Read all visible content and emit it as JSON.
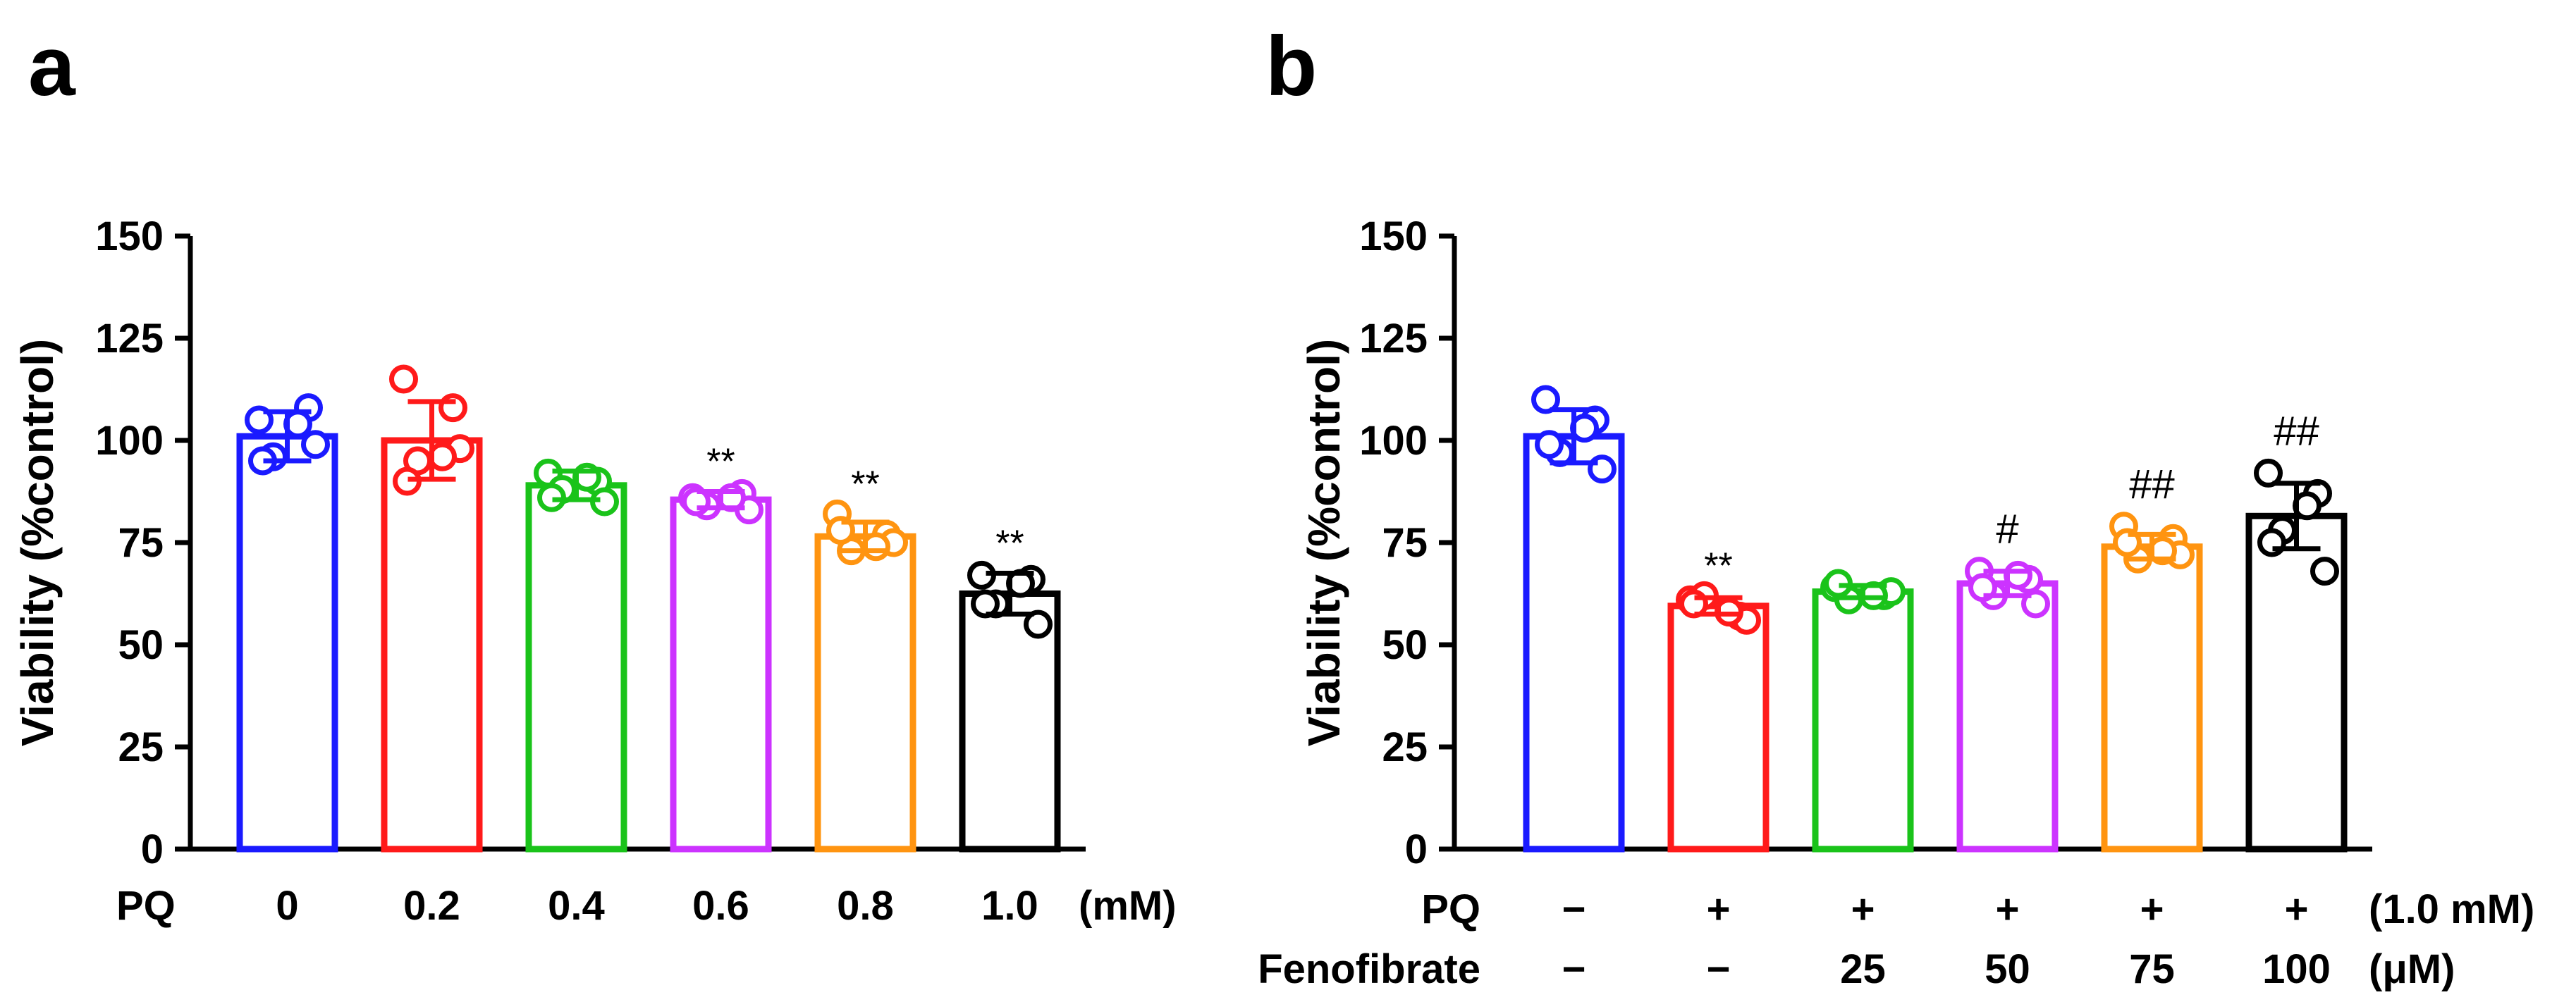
{
  "colors": {
    "blue": "#1a1aff",
    "red": "#ff1a1a",
    "green": "#1ac31a",
    "magenta": "#cc33ff",
    "orange": "#ff9410",
    "black": "#000000"
  },
  "chart_data": [
    {
      "panel": "a",
      "type": "bar",
      "ylabel": "Viability (%control)",
      "ylim": [
        0,
        150
      ],
      "yticks": [
        "0",
        "25",
        "50",
        "75",
        "100",
        "125",
        "150"
      ],
      "row_label": "PQ",
      "unit_label": "(mM)",
      "categories": [
        "0",
        "0.2",
        "0.4",
        "0.6",
        "0.8",
        "1.0"
      ],
      "values": [
        101,
        100,
        89,
        85.5,
        76.5,
        62.5
      ],
      "errors": [
        6,
        9.5,
        3.5,
        2,
        3.5,
        5
      ],
      "bar_colors": [
        "blue",
        "red",
        "green",
        "magenta",
        "orange",
        "black"
      ],
      "annotations": [
        "",
        "",
        "",
        "**",
        "**",
        "**"
      ],
      "points": [
        [
          105,
          108,
          96,
          99,
          95,
          104
        ],
        [
          115,
          108,
          95,
          98,
          90,
          96
        ],
        [
          92,
          90,
          88,
          85,
          86,
          91
        ],
        [
          86,
          87,
          84,
          83,
          85,
          86
        ],
        [
          82,
          77,
          73,
          75,
          78,
          74
        ],
        [
          67,
          66,
          60,
          55,
          60,
          65
        ]
      ]
    },
    {
      "panel": "b",
      "type": "bar",
      "ylabel": "Viability (%control)",
      "ylim": [
        0,
        150
      ],
      "yticks": [
        "0",
        "25",
        "50",
        "75",
        "100",
        "125",
        "150"
      ],
      "row1_label": "PQ",
      "row1_values": [
        "−",
        "+",
        "+",
        "+",
        "+",
        "+"
      ],
      "row1_unit": "(1.0 mM)",
      "row2_label": "Fenofibrate",
      "row2_values": [
        "−",
        "−",
        "25",
        "50",
        "75",
        "100"
      ],
      "row2_unit": "(μM)",
      "values": [
        101,
        59.5,
        63,
        65,
        74,
        81.5
      ],
      "errors": [
        6.5,
        2,
        1.5,
        3,
        3,
        8
      ],
      "bar_colors": [
        "blue",
        "red",
        "green",
        "magenta",
        "orange",
        "black"
      ],
      "annotations": [
        "",
        "**",
        "",
        "#",
        "##",
        "##"
      ],
      "points": [
        [
          110,
          105,
          97,
          93,
          99,
          103
        ],
        [
          61,
          57,
          62,
          56,
          60,
          58
        ],
        [
          64,
          62,
          61,
          63,
          65,
          62
        ],
        [
          68,
          66,
          62,
          60,
          64,
          67
        ],
        [
          79,
          76,
          71,
          72,
          75,
          73
        ],
        [
          92,
          87,
          78,
          68,
          75,
          84
        ]
      ]
    }
  ]
}
